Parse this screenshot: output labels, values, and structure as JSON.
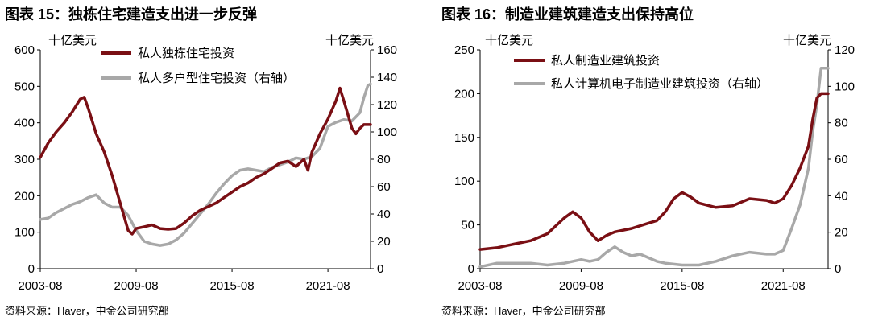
{
  "colors": {
    "series_primary": "#7a0f14",
    "series_secondary": "#a8a8a8",
    "axis": "#000000"
  },
  "chart_data": [
    {
      "type": "line",
      "title": "图表 15：独栋住宅建造支出进一步反弹",
      "source": "资料来源：Haver，中金公司研究部",
      "left_unit": "十亿美元",
      "right_unit": "十亿美元",
      "x_range": [
        "2003-08",
        "2024-04"
      ],
      "x_ticks": [
        "2003-08",
        "2009-08",
        "2015-08",
        "2021-08"
      ],
      "ylim_left": [
        0,
        600
      ],
      "yticks_left": [
        "0",
        "100",
        "200",
        "300",
        "400",
        "500",
        "600"
      ],
      "ylim_right": [
        0,
        160
      ],
      "yticks_right": [
        "0",
        "20",
        "40",
        "60",
        "80",
        "100",
        "120",
        "140",
        "160"
      ],
      "legend_position": "top-left",
      "series": [
        {
          "name": "私人独栋住宅投资",
          "axis": "left",
          "color": "#7a0f14",
          "points": [
            [
              "2003-08",
              305
            ],
            [
              "2004-02",
              345
            ],
            [
              "2004-08",
              375
            ],
            [
              "2005-02",
              400
            ],
            [
              "2005-08",
              430
            ],
            [
              "2006-02",
              465
            ],
            [
              "2006-05",
              470
            ],
            [
              "2006-08",
              440
            ],
            [
              "2007-02",
              370
            ],
            [
              "2007-08",
              320
            ],
            [
              "2008-02",
              255
            ],
            [
              "2008-08",
              180
            ],
            [
              "2009-02",
              105
            ],
            [
              "2009-05",
              95
            ],
            [
              "2009-08",
              110
            ],
            [
              "2010-02",
              115
            ],
            [
              "2010-08",
              120
            ],
            [
              "2011-02",
              110
            ],
            [
              "2011-08",
              108
            ],
            [
              "2012-02",
              110
            ],
            [
              "2012-08",
              125
            ],
            [
              "2013-02",
              145
            ],
            [
              "2013-08",
              160
            ],
            [
              "2014-02",
              170
            ],
            [
              "2014-08",
              180
            ],
            [
              "2015-02",
              195
            ],
            [
              "2015-08",
              210
            ],
            [
              "2016-02",
              225
            ],
            [
              "2016-08",
              235
            ],
            [
              "2017-02",
              250
            ],
            [
              "2017-08",
              260
            ],
            [
              "2018-02",
              275
            ],
            [
              "2018-08",
              290
            ],
            [
              "2019-02",
              295
            ],
            [
              "2019-08",
              280
            ],
            [
              "2020-02",
              300
            ],
            [
              "2020-05",
              270
            ],
            [
              "2020-08",
              320
            ],
            [
              "2021-02",
              370
            ],
            [
              "2021-08",
              410
            ],
            [
              "2022-02",
              460
            ],
            [
              "2022-05",
              495
            ],
            [
              "2022-08",
              460
            ],
            [
              "2023-02",
              385
            ],
            [
              "2023-05",
              370
            ],
            [
              "2023-08",
              385
            ],
            [
              "2023-11",
              395
            ],
            [
              "2024-04",
              395
            ]
          ]
        },
        {
          "name": "私人多户型住宅投资（右轴）",
          "axis": "right",
          "color": "#a8a8a8",
          "points": [
            [
              "2003-08",
              36
            ],
            [
              "2004-02",
              37
            ],
            [
              "2004-08",
              41
            ],
            [
              "2005-02",
              44
            ],
            [
              "2005-08",
              47
            ],
            [
              "2006-02",
              49
            ],
            [
              "2006-08",
              52
            ],
            [
              "2007-02",
              54
            ],
            [
              "2007-08",
              48
            ],
            [
              "2008-02",
              45
            ],
            [
              "2008-08",
              45
            ],
            [
              "2009-02",
              39
            ],
            [
              "2009-08",
              28
            ],
            [
              "2010-02",
              20
            ],
            [
              "2010-08",
              18
            ],
            [
              "2011-02",
              17
            ],
            [
              "2011-08",
              18
            ],
            [
              "2012-02",
              21
            ],
            [
              "2012-08",
              26
            ],
            [
              "2013-02",
              33
            ],
            [
              "2013-08",
              40
            ],
            [
              "2014-02",
              47
            ],
            [
              "2014-08",
              55
            ],
            [
              "2015-02",
              62
            ],
            [
              "2015-08",
              68
            ],
            [
              "2016-02",
              72
            ],
            [
              "2016-08",
              73
            ],
            [
              "2017-02",
              72
            ],
            [
              "2017-08",
              71
            ],
            [
              "2018-02",
              74
            ],
            [
              "2018-08",
              76
            ],
            [
              "2019-02",
              78
            ],
            [
              "2019-08",
              81
            ],
            [
              "2020-02",
              80
            ],
            [
              "2020-08",
              82
            ],
            [
              "2021-02",
              88
            ],
            [
              "2021-08",
              104
            ],
            [
              "2022-02",
              107
            ],
            [
              "2022-08",
              109
            ],
            [
              "2023-02",
              108
            ],
            [
              "2023-08",
              114
            ],
            [
              "2023-11",
              125
            ],
            [
              "2024-02",
              134
            ],
            [
              "2024-04",
              135
            ]
          ]
        }
      ]
    },
    {
      "type": "line",
      "title": "图表 16：制造业建筑建造支出保持高位",
      "source": "资料来源：Haver，中金公司研究部",
      "left_unit": "十亿美元",
      "right_unit": "十亿美元",
      "x_range": [
        "2003-08",
        "2024-04"
      ],
      "x_ticks": [
        "2003-08",
        "2009-08",
        "2015-08",
        "2021-08"
      ],
      "ylim_left": [
        0,
        250
      ],
      "yticks_left": [
        "0",
        "50",
        "100",
        "150",
        "200",
        "250"
      ],
      "ylim_right": [
        0,
        120
      ],
      "yticks_right": [
        "0",
        "20",
        "40",
        "60",
        "80",
        "100",
        "120"
      ],
      "legend_position": "top-left",
      "series": [
        {
          "name": "私人制造业建筑投资",
          "axis": "left",
          "color": "#7a0f14",
          "points": [
            [
              "2003-08",
              22
            ],
            [
              "2004-08",
              24
            ],
            [
              "2005-08",
              28
            ],
            [
              "2006-08",
              32
            ],
            [
              "2007-08",
              40
            ],
            [
              "2008-08",
              58
            ],
            [
              "2009-02",
              65
            ],
            [
              "2009-08",
              58
            ],
            [
              "2010-02",
              42
            ],
            [
              "2010-08",
              32
            ],
            [
              "2011-02",
              38
            ],
            [
              "2011-08",
              42
            ],
            [
              "2012-08",
              46
            ],
            [
              "2013-08",
              52
            ],
            [
              "2014-02",
              55
            ],
            [
              "2014-08",
              65
            ],
            [
              "2015-02",
              80
            ],
            [
              "2015-08",
              87
            ],
            [
              "2016-02",
              82
            ],
            [
              "2016-08",
              75
            ],
            [
              "2017-08",
              70
            ],
            [
              "2018-08",
              72
            ],
            [
              "2019-08",
              80
            ],
            [
              "2020-08",
              78
            ],
            [
              "2021-02",
              75
            ],
            [
              "2021-08",
              80
            ],
            [
              "2022-02",
              95
            ],
            [
              "2022-08",
              115
            ],
            [
              "2023-02",
              140
            ],
            [
              "2023-05",
              170
            ],
            [
              "2023-08",
              195
            ],
            [
              "2023-11",
              200
            ],
            [
              "2024-04",
              200
            ]
          ]
        },
        {
          "name": "私人计算机电子制造业建筑投资（右轴）",
          "axis": "right",
          "color": "#a8a8a8",
          "points": [
            [
              "2003-08",
              1
            ],
            [
              "2004-08",
              3
            ],
            [
              "2005-08",
              3
            ],
            [
              "2006-08",
              3
            ],
            [
              "2007-08",
              2
            ],
            [
              "2008-08",
              3
            ],
            [
              "2009-08",
              5
            ],
            [
              "2010-02",
              4
            ],
            [
              "2010-08",
              5
            ],
            [
              "2011-02",
              9
            ],
            [
              "2011-08",
              12
            ],
            [
              "2012-02",
              9
            ],
            [
              "2012-08",
              7
            ],
            [
              "2013-02",
              8
            ],
            [
              "2013-08",
              6
            ],
            [
              "2014-02",
              4
            ],
            [
              "2014-08",
              3
            ],
            [
              "2015-08",
              2
            ],
            [
              "2016-08",
              2
            ],
            [
              "2017-08",
              4
            ],
            [
              "2018-08",
              7
            ],
            [
              "2019-08",
              9
            ],
            [
              "2020-08",
              8
            ],
            [
              "2021-02",
              8
            ],
            [
              "2021-08",
              10
            ],
            [
              "2022-02",
              22
            ],
            [
              "2022-08",
              35
            ],
            [
              "2023-02",
              55
            ],
            [
              "2023-05",
              75
            ],
            [
              "2023-08",
              90
            ],
            [
              "2023-11",
              110
            ],
            [
              "2024-04",
              110
            ]
          ]
        }
      ]
    }
  ]
}
